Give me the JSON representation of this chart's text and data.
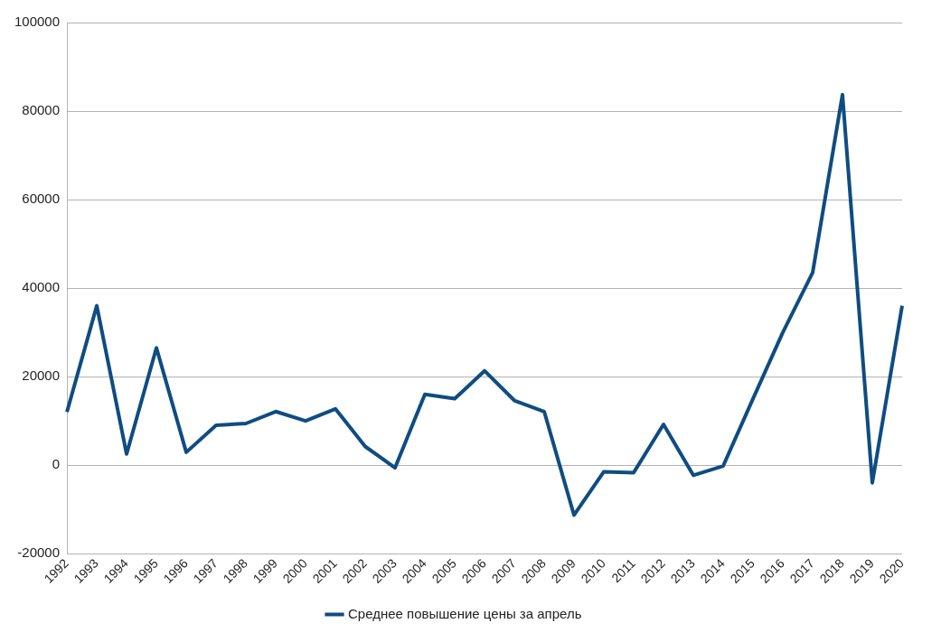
{
  "chart_data": {
    "type": "line",
    "categories": [
      "1992",
      "1993",
      "1994",
      "1995",
      "1996",
      "1997",
      "1998",
      "1999",
      "2000",
      "2001",
      "2002",
      "2003",
      "2004",
      "2005",
      "2006",
      "2007",
      "2008",
      "2009",
      "2010",
      "2011",
      "2012",
      "2013",
      "2014",
      "2015",
      "2016",
      "2017",
      "2018",
      "2019",
      "2020"
    ],
    "series": [
      {
        "name": "Среднее повышение цены за апрель",
        "color": "#0f4c81",
        "values": [
          12000,
          36000,
          2500,
          26500,
          2900,
          9000,
          9400,
          12100,
          10000,
          12700,
          4200,
          -600,
          16000,
          15000,
          21300,
          14600,
          12100,
          -11300,
          -1500,
          -1700,
          9200,
          -2300,
          -200,
          15000,
          30000,
          43500,
          83700,
          -4000,
          36000
        ]
      }
    ],
    "ylim": [
      -20000,
      100000
    ],
    "yticks": [
      -20000,
      0,
      20000,
      40000,
      60000,
      80000,
      100000
    ],
    "grid": "y",
    "legend": "bottom",
    "marker": "none",
    "line_style": "solid"
  }
}
